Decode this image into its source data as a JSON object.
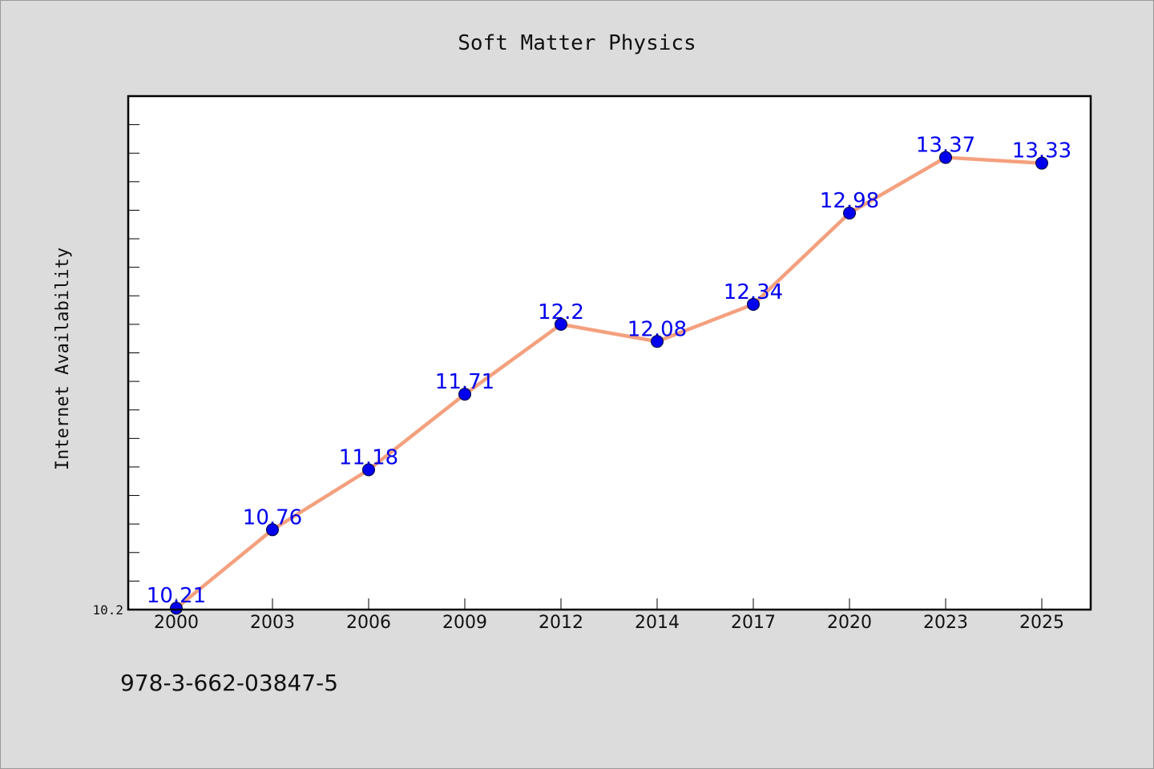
{
  "colors": {
    "background": "#dcdcdc",
    "plot_background": "#ffffff",
    "line": "#f4a07e",
    "marker": "#0000ee",
    "data_label": "#0000ee",
    "axis": "#000000"
  },
  "footnote": "978-3-662-03847-5",
  "chart_data": {
    "type": "line",
    "title": "Soft Matter Physics",
    "xlabel": "",
    "ylabel": "Internet Availability",
    "x": [
      "2000",
      "2003",
      "2006",
      "2009",
      "2012",
      "2014",
      "2017",
      "2020",
      "2023",
      "2025"
    ],
    "series": [
      {
        "values": [
          10.21,
          10.76,
          11.18,
          11.71,
          12.2,
          12.08,
          12.34,
          12.98,
          13.37,
          13.33
        ],
        "labels": [
          "10.21",
          "10.76",
          "11.18",
          "11.71",
          "12.2",
          "12.08",
          "12.34",
          "12.98",
          "13.37",
          "13.33"
        ]
      }
    ],
    "ylim": [
      10.2,
      13.8
    ],
    "y_tick_labels": [
      {
        "value": 10.2,
        "label": "10.2"
      }
    ],
    "y_minor_tick_step": 0.2,
    "grid": false,
    "legend": "none"
  }
}
